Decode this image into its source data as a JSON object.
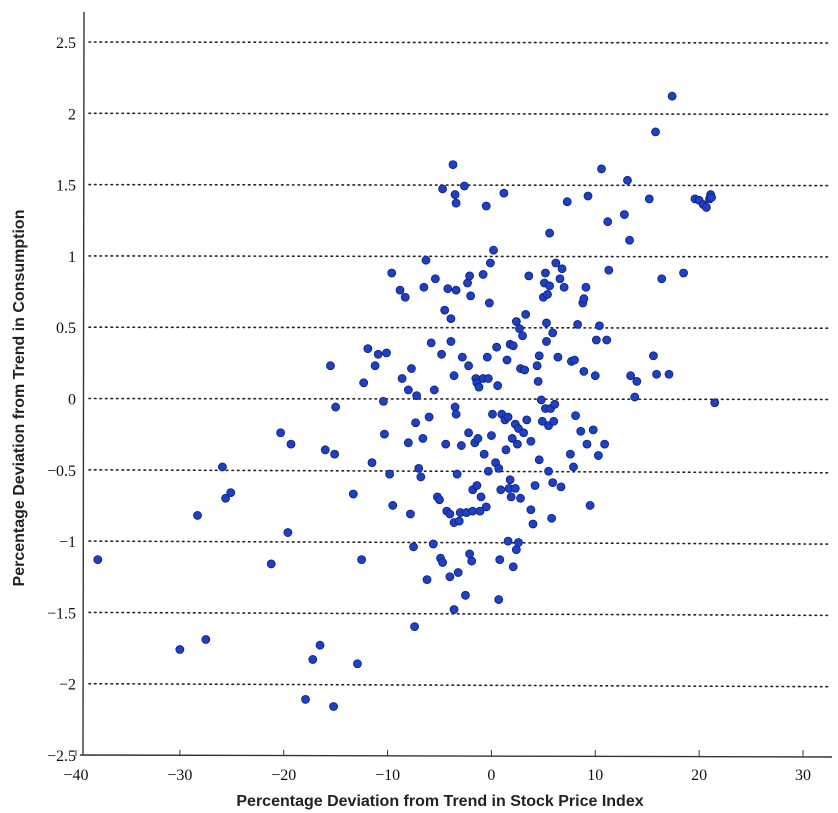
{
  "chart_data": {
    "type": "scatter",
    "title": "",
    "xlabel": "Percentage Deviation from Trend in Stock Price Index",
    "ylabel": "Percentage Deviation from Trend in Consumption",
    "xlim": [
      -40,
      33
    ],
    "ylim": [
      -2.5,
      2.65
    ],
    "xticks": [
      -40,
      -30,
      -20,
      -10,
      0,
      10,
      20,
      30
    ],
    "xtick_labels": [
      "−40",
      "−30",
      "−20",
      "−10",
      "0",
      "10",
      "20",
      "30"
    ],
    "yticks": [
      2.5,
      2,
      1.5,
      1,
      0.5,
      0,
      -0.5,
      -1,
      -1.5,
      -2,
      -2.5
    ],
    "ytick_labels": [
      "2.5",
      "2",
      "1.5",
      "1",
      "0.5",
      "0",
      "−0.5",
      "−1",
      "−1.5",
      "−2",
      "−2.5"
    ],
    "grid": "horizontal dotted",
    "marker_color": "#1f3fc4",
    "marker_edge": "#0c1f7a",
    "series": [
      {
        "points": [
          [
            -37.9,
            -1.13
          ],
          [
            -30.0,
            -1.76
          ],
          [
            -28.3,
            -0.82
          ],
          [
            -27.5,
            -1.69
          ],
          [
            -25.9,
            -0.48
          ],
          [
            -25.6,
            -0.7
          ],
          [
            -25.1,
            -0.66
          ],
          [
            -21.2,
            -1.16
          ],
          [
            -20.3,
            -0.24
          ],
          [
            -19.6,
            -0.94
          ],
          [
            -19.3,
            -0.32
          ],
          [
            -17.9,
            -2.11
          ],
          [
            -17.2,
            -1.83
          ],
          [
            -16.5,
            -1.73
          ],
          [
            -16.0,
            -0.36
          ],
          [
            -15.5,
            0.23
          ],
          [
            -15.2,
            -2.16
          ],
          [
            -15.1,
            -0.39
          ],
          [
            -15.0,
            -0.06
          ],
          [
            -13.3,
            -0.67
          ],
          [
            -12.9,
            -1.86
          ],
          [
            -12.5,
            -1.13
          ],
          [
            -12.3,
            0.11
          ],
          [
            -11.9,
            0.35
          ],
          [
            -11.5,
            -0.45
          ],
          [
            -11.2,
            0.23
          ],
          [
            -10.9,
            0.31
          ],
          [
            -10.4,
            -0.02
          ],
          [
            -10.3,
            -0.25
          ],
          [
            -10.1,
            0.32
          ],
          [
            -9.8,
            -0.53
          ],
          [
            -9.6,
            0.88
          ],
          [
            -9.5,
            -0.75
          ],
          [
            -8.8,
            0.76
          ],
          [
            -8.6,
            0.14
          ],
          [
            -8.3,
            0.71
          ],
          [
            -8.0,
            0.06
          ],
          [
            -8.0,
            -0.31
          ],
          [
            -7.8,
            -0.81
          ],
          [
            -7.7,
            0.21
          ],
          [
            -7.5,
            -1.04
          ],
          [
            -7.4,
            -1.6
          ],
          [
            -7.3,
            -0.17
          ],
          [
            -7.2,
            0.02
          ],
          [
            -7.0,
            -0.49
          ],
          [
            -6.8,
            -0.55
          ],
          [
            -6.6,
            -0.28
          ],
          [
            -6.5,
            0.78
          ],
          [
            -6.3,
            0.97
          ],
          [
            -6.2,
            -1.27
          ],
          [
            -6.0,
            -0.13
          ],
          [
            -5.8,
            0.39
          ],
          [
            -5.6,
            -1.02
          ],
          [
            -5.5,
            0.06
          ],
          [
            -5.4,
            0.84
          ],
          [
            -5.2,
            -0.69
          ],
          [
            -5.0,
            -0.71
          ],
          [
            -4.9,
            -1.12
          ],
          [
            -4.8,
            0.31
          ],
          [
            -4.7,
            -1.15
          ],
          [
            -4.7,
            1.47
          ],
          [
            -4.5,
            0.62
          ],
          [
            -4.4,
            -0.32
          ],
          [
            -4.3,
            -0.79
          ],
          [
            -4.2,
            0.77
          ],
          [
            -4.0,
            -1.25
          ],
          [
            -4.0,
            -0.81
          ],
          [
            -3.9,
            0.56
          ],
          [
            -3.9,
            0.4
          ],
          [
            -3.7,
            1.64
          ],
          [
            -3.6,
            0.16
          ],
          [
            -3.6,
            -0.87
          ],
          [
            -3.6,
            -1.48
          ],
          [
            -3.5,
            -0.06
          ],
          [
            -3.5,
            1.43
          ],
          [
            -3.4,
            1.37
          ],
          [
            -3.4,
            -0.11
          ],
          [
            -3.4,
            0.76
          ],
          [
            -3.3,
            -0.53
          ],
          [
            -3.2,
            -1.22
          ],
          [
            -3.1,
            -0.86
          ],
          [
            -3.0,
            -0.8
          ],
          [
            -2.9,
            -0.33
          ],
          [
            -2.8,
            0.29
          ],
          [
            -2.5,
            -1.38
          ],
          [
            -2.6,
            1.49
          ],
          [
            -2.4,
            -0.8
          ],
          [
            -2.3,
            0.81
          ],
          [
            -2.2,
            -0.24
          ],
          [
            -2.2,
            0.23
          ],
          [
            -2.1,
            -1.09
          ],
          [
            -2.1,
            0.86
          ],
          [
            -2.0,
            0.72
          ],
          [
            -1.9,
            -1.14
          ],
          [
            -1.8,
            -0.79
          ],
          [
            -1.8,
            -0.64
          ],
          [
            -1.6,
            -0.31
          ],
          [
            -1.5,
            0.14
          ],
          [
            -1.4,
            -0.61
          ],
          [
            -1.4,
            0.11
          ],
          [
            -1.3,
            -0.28
          ],
          [
            -1.2,
            0.08
          ],
          [
            -1.1,
            -0.79
          ],
          [
            -1.0,
            -0.69
          ],
          [
            -0.8,
            0.14
          ],
          [
            -0.8,
            0.87
          ],
          [
            -0.7,
            -0.39
          ],
          [
            -0.5,
            1.35
          ],
          [
            -0.5,
            -0.76
          ],
          [
            -0.4,
            0.29
          ],
          [
            -0.3,
            -0.51
          ],
          [
            -0.3,
            0.14
          ],
          [
            -0.2,
            0.67
          ],
          [
            -0.1,
            0.95
          ],
          [
            0.0,
            -0.26
          ],
          [
            0.1,
            -0.11
          ],
          [
            0.2,
            1.04
          ],
          [
            0.4,
            -0.45
          ],
          [
            0.5,
            0.36
          ],
          [
            0.6,
            0.09
          ],
          [
            0.7,
            -0.49
          ],
          [
            0.7,
            -1.41
          ],
          [
            0.8,
            -1.13
          ],
          [
            0.9,
            -0.64
          ],
          [
            1.0,
            -0.11
          ],
          [
            1.2,
            1.44
          ],
          [
            1.3,
            -0.15
          ],
          [
            1.4,
            -0.36
          ],
          [
            1.5,
            0.27
          ],
          [
            1.6,
            -0.13
          ],
          [
            1.6,
            -1.0
          ],
          [
            1.7,
            -0.63
          ],
          [
            1.8,
            -0.57
          ],
          [
            1.8,
            0.38
          ],
          [
            1.9,
            -0.69
          ],
          [
            2.0,
            -0.28
          ],
          [
            2.1,
            -1.18
          ],
          [
            2.1,
            0.37
          ],
          [
            2.3,
            -0.18
          ],
          [
            2.3,
            -0.63
          ],
          [
            2.4,
            0.54
          ],
          [
            2.4,
            -1.06
          ],
          [
            2.5,
            -0.32
          ],
          [
            2.6,
            -0.21
          ],
          [
            2.6,
            -1.01
          ],
          [
            2.7,
            0.49
          ],
          [
            2.8,
            -0.7
          ],
          [
            2.8,
            0.21
          ],
          [
            3.0,
            0.44
          ],
          [
            3.1,
            -0.24
          ],
          [
            3.2,
            0.2
          ],
          [
            3.3,
            0.59
          ],
          [
            3.4,
            -0.15
          ],
          [
            3.6,
            0.86
          ],
          [
            3.8,
            -0.78
          ],
          [
            3.8,
            -0.3
          ],
          [
            4.0,
            -0.88
          ],
          [
            4.2,
            -0.61
          ],
          [
            4.4,
            0.23
          ],
          [
            4.5,
            0.12
          ],
          [
            4.6,
            -0.43
          ],
          [
            4.6,
            0.3
          ],
          [
            4.8,
            -0.01
          ],
          [
            4.9,
            -0.16
          ],
          [
            5.0,
            0.71
          ],
          [
            5.1,
            0.81
          ],
          [
            5.2,
            0.88
          ],
          [
            5.2,
            -0.07
          ],
          [
            5.3,
            0.53
          ],
          [
            5.3,
            0.4
          ],
          [
            5.4,
            0.73
          ],
          [
            5.5,
            -0.51
          ],
          [
            5.5,
            -0.19
          ],
          [
            5.6,
            1.16
          ],
          [
            5.6,
            0.79
          ],
          [
            5.7,
            -0.07
          ],
          [
            5.8,
            -0.84
          ],
          [
            5.9,
            -0.59
          ],
          [
            5.9,
            0.46
          ],
          [
            6.0,
            -0.16
          ],
          [
            6.1,
            -0.04
          ],
          [
            6.2,
            0.95
          ],
          [
            6.4,
            0.29
          ],
          [
            6.6,
            0.84
          ],
          [
            6.7,
            -0.62
          ],
          [
            6.8,
            0.91
          ],
          [
            7.0,
            0.78
          ],
          [
            7.3,
            1.38
          ],
          [
            7.6,
            -0.39
          ],
          [
            7.7,
            0.26
          ],
          [
            7.9,
            -0.48
          ],
          [
            8.0,
            0.27
          ],
          [
            8.1,
            -0.12
          ],
          [
            8.3,
            0.52
          ],
          [
            8.6,
            -0.23
          ],
          [
            8.8,
            0.67
          ],
          [
            8.9,
            0.7
          ],
          [
            8.9,
            0.19
          ],
          [
            9.1,
            0.78
          ],
          [
            9.2,
            -0.32
          ],
          [
            9.3,
            1.42
          ],
          [
            9.5,
            -0.75
          ],
          [
            9.8,
            -0.22
          ],
          [
            10.0,
            0.16
          ],
          [
            10.1,
            0.41
          ],
          [
            10.3,
            -0.4
          ],
          [
            10.4,
            0.51
          ],
          [
            10.6,
            1.61
          ],
          [
            10.9,
            -0.32
          ],
          [
            11.1,
            0.41
          ],
          [
            11.2,
            1.24
          ],
          [
            11.3,
            0.9
          ],
          [
            12.8,
            1.29
          ],
          [
            13.1,
            1.53
          ],
          [
            13.3,
            1.11
          ],
          [
            13.4,
            0.16
          ],
          [
            13.8,
            0.01
          ],
          [
            14.0,
            0.12
          ],
          [
            15.2,
            1.4
          ],
          [
            15.6,
            0.3
          ],
          [
            15.8,
            1.87
          ],
          [
            15.9,
            0.17
          ],
          [
            16.4,
            0.84
          ],
          [
            17.1,
            0.17
          ],
          [
            17.4,
            2.12
          ],
          [
            18.5,
            0.88
          ],
          [
            19.6,
            1.4
          ],
          [
            20.0,
            1.39
          ],
          [
            20.4,
            1.36
          ],
          [
            20.7,
            1.34
          ],
          [
            21.0,
            1.4
          ],
          [
            21.1,
            1.43
          ],
          [
            21.2,
            1.41
          ],
          [
            21.5,
            -0.03
          ]
        ]
      }
    ]
  }
}
